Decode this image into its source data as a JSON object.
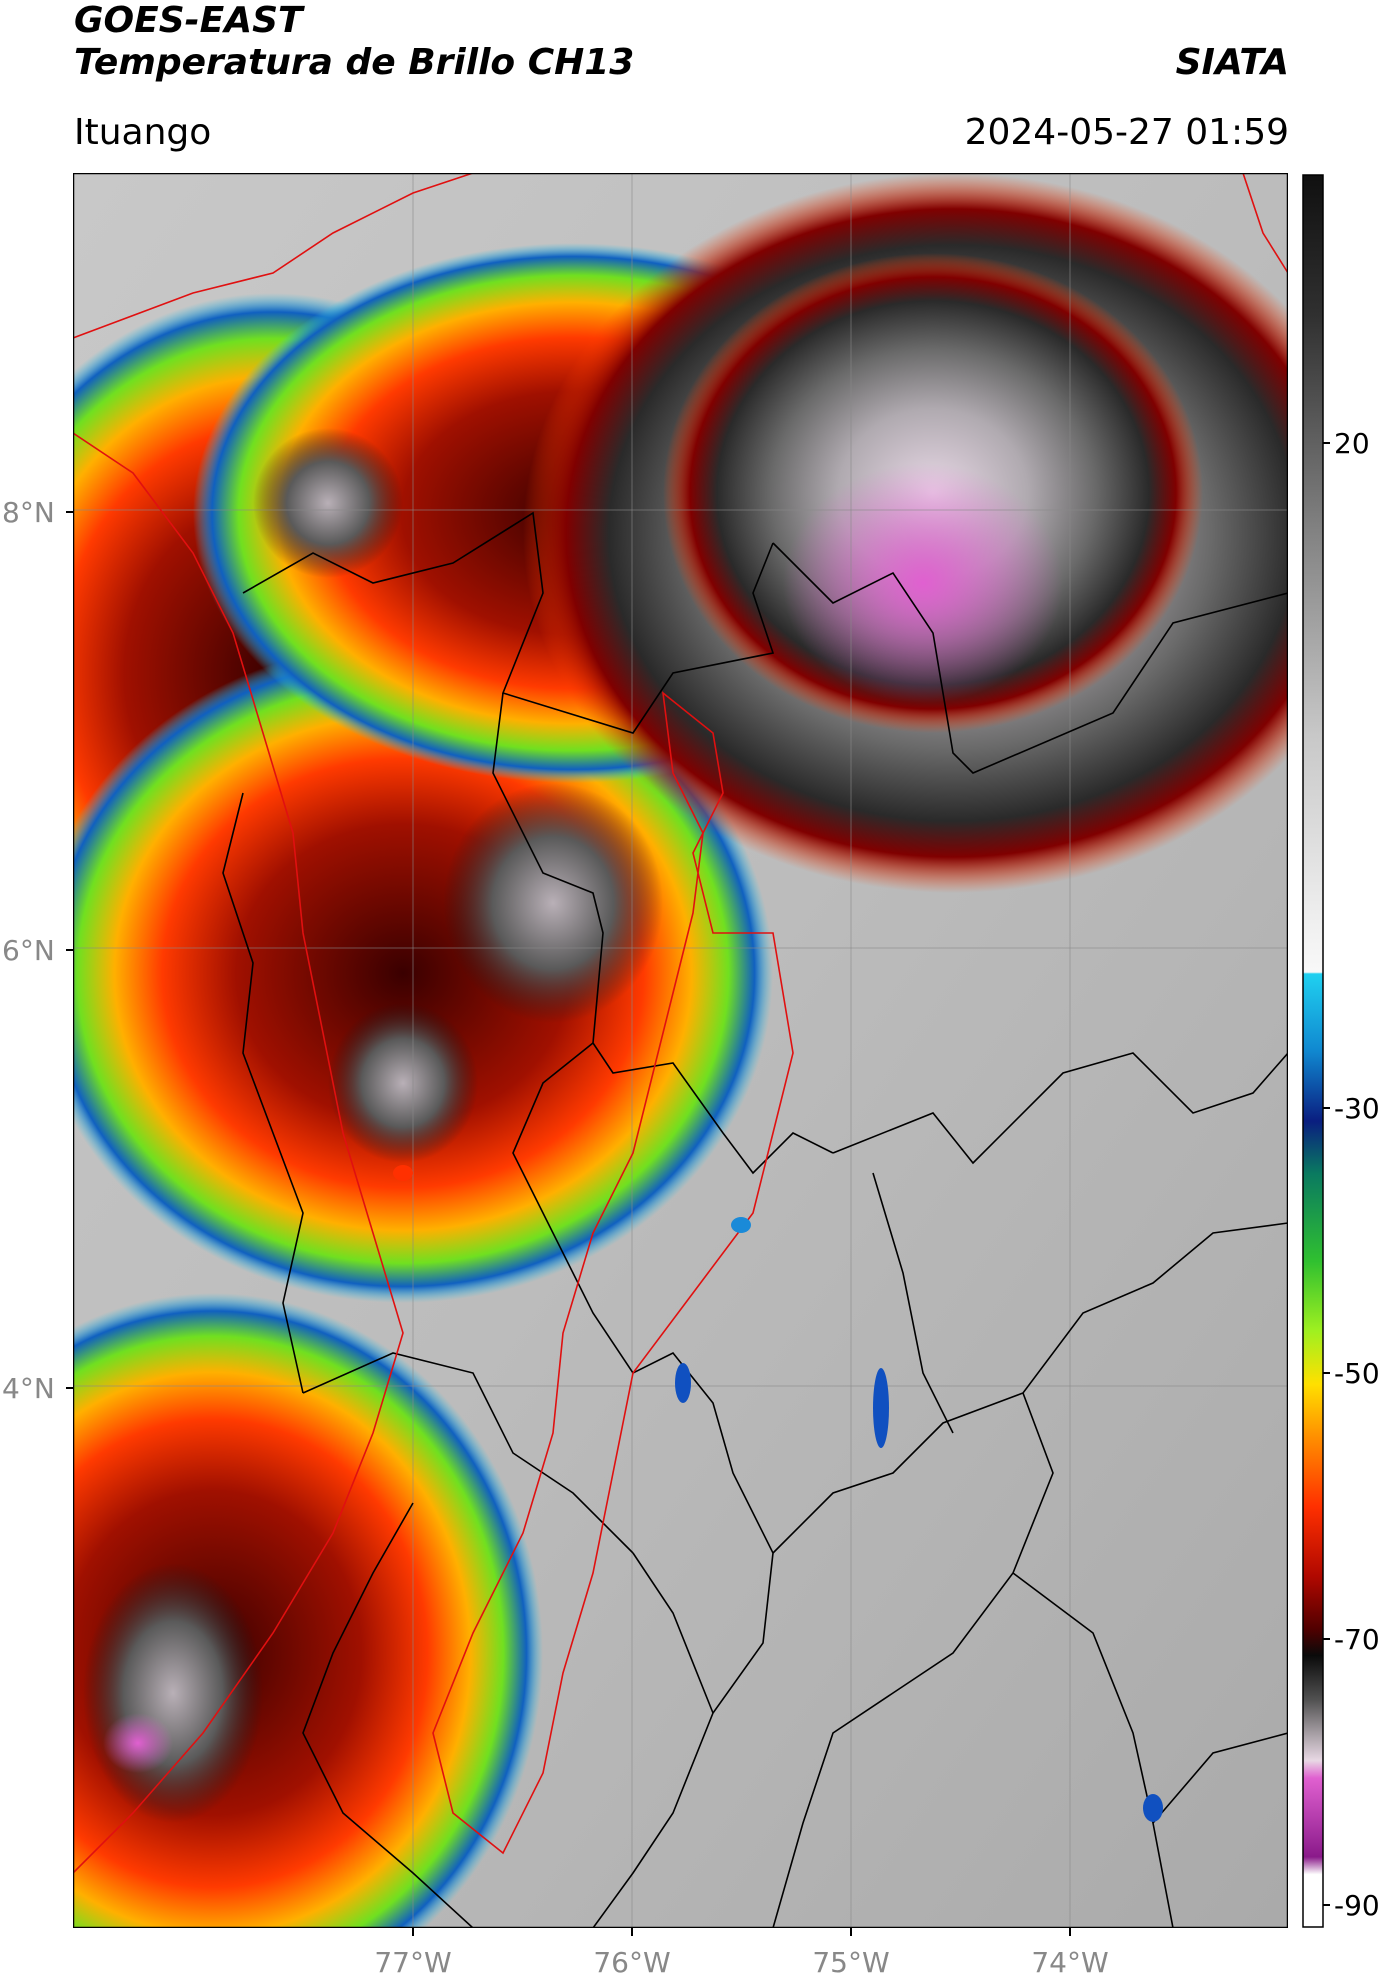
{
  "header": {
    "satellite": "GOES-EAST",
    "product": "Temperatura de Brillo CH13",
    "organization": "SIATA",
    "location": "Ituango",
    "datetime": "2024-05-27 01:59"
  },
  "map": {
    "lat_labels": [
      "8°N",
      "6°N",
      "4°N"
    ],
    "lon_labels": [
      "77°W",
      "76°W",
      "75°W",
      "74°W"
    ],
    "gridlines": true,
    "border_colors": {
      "admin": "#000000",
      "basin": "#e01010"
    }
  },
  "colorbar": {
    "ticks": [
      "20",
      "-30",
      "-50",
      "-70",
      "-90"
    ],
    "units_hint": "°C"
  }
}
